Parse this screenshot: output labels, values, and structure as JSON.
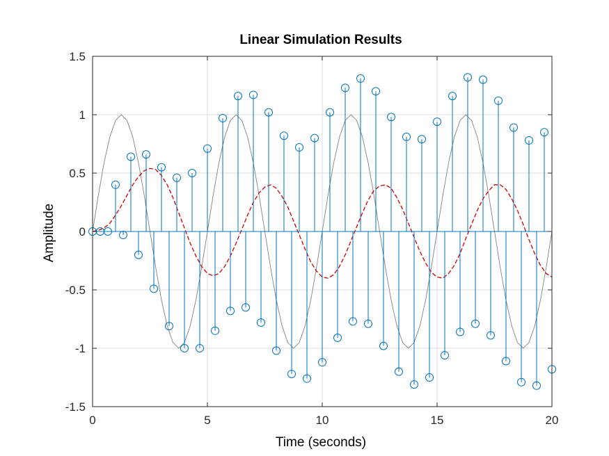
{
  "chart_data": {
    "type": "line",
    "title": "Linear Simulation Results",
    "xlabel": "Time (seconds)",
    "ylabel": "Amplitude",
    "xlim": [
      0,
      20
    ],
    "ylim": [
      -1.5,
      1.5
    ],
    "xticks": [
      "0",
      "5",
      "10",
      "15",
      "20"
    ],
    "yticks": [
      "-1.5",
      "-1",
      "-0.5",
      "0",
      "0.5",
      "1",
      "1.5"
    ],
    "grid": true,
    "legend": "none",
    "colors": {
      "input": "#808080",
      "response": "#cc0000",
      "stem": "#0072bd",
      "grid": "#dedede",
      "axes": "#262626"
    },
    "series": [
      {
        "style": "solid-thin",
        "color": "#808080",
        "x": [
          0,
          0.25,
          0.5,
          0.75,
          1,
          1.25,
          1.5,
          1.75,
          2,
          2.25,
          2.5,
          2.75,
          3,
          3.25,
          3.5,
          3.75,
          4,
          4.25,
          4.5,
          4.75,
          5,
          5.25,
          5.5,
          5.75,
          6,
          6.25,
          6.5,
          6.75,
          7,
          7.25,
          7.5,
          7.75,
          8,
          8.25,
          8.5,
          8.75,
          9,
          9.25,
          9.5,
          9.75,
          10,
          10.25,
          10.5,
          10.75,
          11,
          11.25,
          11.5,
          11.75,
          12,
          12.25,
          12.5,
          12.75,
          13,
          13.25,
          13.5,
          13.75,
          14,
          14.25,
          14.5,
          14.75,
          15,
          15.25,
          15.5,
          15.75,
          16,
          16.25,
          16.5,
          16.75,
          17,
          17.25,
          17.5,
          17.75,
          18,
          18.25,
          18.5,
          18.75,
          19,
          19.25,
          19.5,
          19.75,
          20
        ],
        "y": [
          0,
          0.309,
          0.588,
          0.809,
          0.951,
          1,
          0.951,
          0.809,
          0.588,
          0.309,
          0,
          -0.309,
          -0.588,
          -0.809,
          -0.951,
          -1,
          -0.951,
          -0.809,
          -0.588,
          -0.309,
          0,
          0.309,
          0.588,
          0.809,
          0.951,
          1,
          0.951,
          0.809,
          0.588,
          0.309,
          0,
          -0.309,
          -0.588,
          -0.809,
          -0.951,
          -1,
          -0.951,
          -0.809,
          -0.588,
          -0.309,
          0,
          0.309,
          0.588,
          0.809,
          0.951,
          1,
          0.951,
          0.809,
          0.588,
          0.309,
          0,
          -0.309,
          -0.588,
          -0.809,
          -0.951,
          -1,
          -0.951,
          -0.809,
          -0.588,
          -0.309,
          0,
          0.309,
          0.588,
          0.809,
          0.951,
          1,
          0.951,
          0.809,
          0.588,
          0.309,
          0,
          -0.309,
          -0.588,
          -0.809,
          -0.951,
          -1,
          -0.951,
          -0.809,
          -0.588,
          -0.309,
          0
        ]
      },
      {
        "style": "dashed",
        "color": "#cc0000",
        "x": [
          0,
          0.25,
          0.5,
          0.75,
          1,
          1.25,
          1.5,
          1.75,
          2,
          2.25,
          2.5,
          2.75,
          3,
          3.25,
          3.5,
          3.75,
          4,
          4.25,
          4.5,
          4.75,
          5,
          5.25,
          5.5,
          5.75,
          6,
          6.25,
          6.5,
          6.75,
          7,
          7.25,
          7.5,
          7.75,
          8,
          8.25,
          8.5,
          8.75,
          9,
          9.25,
          9.5,
          9.75,
          10,
          10.25,
          10.5,
          10.75,
          11,
          11.25,
          11.5,
          11.75,
          12,
          12.25,
          12.5,
          12.75,
          13,
          13.25,
          13.5,
          13.75,
          14,
          14.25,
          14.5,
          14.75,
          15,
          15.25,
          15.5,
          15.75,
          16,
          16.25,
          16.5,
          16.75,
          17,
          17.25,
          17.5,
          17.75,
          18,
          18.25,
          18.5,
          18.75,
          19,
          19.25,
          19.5,
          19.75,
          20
        ],
        "y": [
          0,
          0.01,
          0.03,
          0.07,
          0.14,
          0.22,
          0.31,
          0.4,
          0.47,
          0.52,
          0.54,
          0.53,
          0.48,
          0.4,
          0.29,
          0.16,
          0.03,
          -0.1,
          -0.21,
          -0.3,
          -0.36,
          -0.38,
          -0.36,
          -0.3,
          -0.21,
          -0.1,
          0.02,
          0.14,
          0.25,
          0.33,
          0.38,
          0.4,
          0.37,
          0.3,
          0.21,
          0.09,
          -0.03,
          -0.15,
          -0.26,
          -0.34,
          -0.39,
          -0.4,
          -0.37,
          -0.3,
          -0.2,
          -0.08,
          0.04,
          0.16,
          0.27,
          0.35,
          0.39,
          0.4,
          0.37,
          0.29,
          0.19,
          0.07,
          -0.05,
          -0.17,
          -0.27,
          -0.35,
          -0.39,
          -0.4,
          -0.36,
          -0.29,
          -0.19,
          -0.06,
          0.06,
          0.18,
          0.28,
          0.35,
          0.4,
          0.4,
          0.36,
          0.28,
          0.18,
          0.06,
          -0.07,
          -0.19,
          -0.29,
          -0.36,
          -0.39
        ]
      }
    ],
    "stems": {
      "color": "#0072bd",
      "marker": "circle",
      "x": [
        0,
        0.333,
        0.667,
        1,
        1.333,
        1.667,
        2,
        2.333,
        2.667,
        3,
        3.333,
        3.667,
        4,
        4.333,
        4.667,
        5,
        5.333,
        5.667,
        6,
        6.333,
        6.667,
        7,
        7.333,
        7.667,
        8,
        8.333,
        8.667,
        9,
        9.333,
        9.667,
        10,
        10.333,
        10.667,
        11,
        11.333,
        11.667,
        12,
        12.333,
        12.667,
        13,
        13.333,
        13.667,
        14,
        14.333,
        14.667,
        15,
        15.333,
        15.667,
        16,
        16.333,
        16.667,
        17,
        17.333,
        17.667,
        18,
        18.333,
        18.667,
        19,
        19.333,
        19.667,
        20
      ],
      "y": [
        0,
        0,
        0,
        0.4,
        -0.03,
        0.64,
        -0.2,
        0.66,
        -0.49,
        0.55,
        -0.81,
        0.46,
        -1.0,
        0.5,
        -1.0,
        0.71,
        -0.85,
        0.97,
        -0.68,
        1.16,
        -0.65,
        1.17,
        -0.78,
        1.02,
        -1.02,
        0.82,
        -1.22,
        0.72,
        -1.26,
        0.8,
        -1.12,
        1.02,
        -0.91,
        1.23,
        -0.77,
        1.31,
        -0.79,
        1.2,
        -0.98,
        0.98,
        -1.2,
        0.81,
        -1.31,
        0.79,
        -1.25,
        0.94,
        -1.06,
        1.16,
        -0.86,
        1.32,
        -0.79,
        1.3,
        -0.89,
        1.12,
        -1.11,
        0.89,
        -1.29,
        0.78,
        -1.32,
        0.85,
        -1.18
      ]
    }
  }
}
